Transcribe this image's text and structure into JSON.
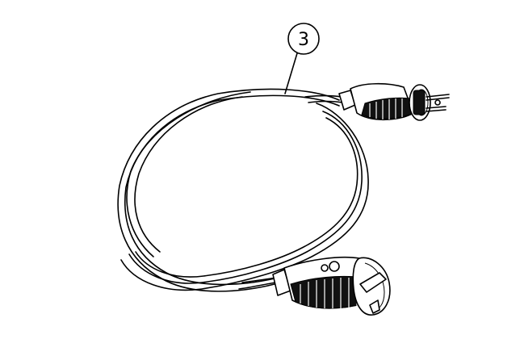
{
  "callout": {
    "label": "3"
  },
  "colors": {
    "line": "#000000",
    "background": "#ffffff",
    "grip": "#111111"
  },
  "icons": [
    "extension-cable-illustration",
    "schuko-plug-icon",
    "schuko-socket-icon"
  ]
}
